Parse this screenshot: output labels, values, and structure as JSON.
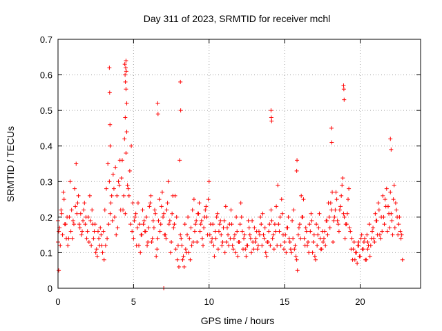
{
  "chart_data": {
    "type": "scatter",
    "title": "Day 311 of 2023, SRMTID for receiver mchl",
    "xlabel": "GPS time / hours",
    "ylabel": "SRMTID / TECUs",
    "xlim": [
      0,
      24
    ],
    "ylim": [
      0,
      0.7
    ],
    "x_ticks": [
      0,
      5,
      10,
      15,
      20
    ],
    "x_tick_labels": [
      "0",
      "5",
      "10",
      "15",
      "20"
    ],
    "y_ticks": [
      0,
      0.1,
      0.2,
      0.3,
      0.4,
      0.5,
      0.6,
      0.7
    ],
    "y_tick_labels": [
      "0",
      "0.1",
      "0.2",
      "0.3",
      "0.4",
      "0.5",
      "0.6",
      "0.7"
    ],
    "grid": true,
    "marker": "plus",
    "color": "#ff0000",
    "series": [
      {
        "name": "SRMTID",
        "x": [
          0.0,
          0.1,
          0.2,
          0.3,
          0.4,
          0.5,
          0.6,
          0.7,
          0.8,
          0.9,
          1.0,
          1.1,
          1.2,
          1.3,
          1.4,
          1.5,
          1.6,
          1.7,
          1.8,
          1.9,
          2.0,
          2.1,
          2.2,
          2.3,
          2.4,
          2.5,
          2.6,
          2.7,
          2.8,
          2.9,
          3.0,
          3.1,
          3.2,
          3.3,
          3.4,
          3.45,
          3.5,
          3.6,
          3.7,
          3.8,
          3.9,
          4.0,
          4.1,
          4.2,
          4.3,
          4.4,
          4.45,
          4.5,
          4.55,
          4.6,
          4.7,
          4.8,
          4.9,
          5.0,
          5.1,
          5.2,
          5.3,
          5.4,
          5.5,
          5.6,
          5.7,
          5.8,
          5.9,
          6.0,
          6.1,
          6.2,
          6.3,
          6.4,
          6.5,
          6.6,
          6.7,
          6.8,
          6.9,
          7.0,
          7.1,
          7.2,
          7.3,
          7.4,
          7.5,
          7.6,
          7.7,
          7.8,
          7.9,
          8.0,
          8.05,
          8.1,
          8.2,
          8.3,
          8.4,
          8.5,
          8.6,
          8.7,
          8.8,
          8.9,
          9.0,
          9.1,
          9.2,
          9.3,
          9.4,
          9.5,
          9.6,
          9.7,
          9.8,
          9.9,
          10.0,
          10.1,
          10.2,
          10.3,
          10.4,
          10.5,
          10.6,
          10.7,
          10.8,
          10.9,
          11.0,
          11.1,
          11.2,
          11.3,
          11.4,
          11.5,
          11.6,
          11.7,
          11.8,
          11.9,
          12.0,
          12.1,
          12.2,
          12.3,
          12.4,
          12.5,
          12.6,
          12.7,
          12.8,
          12.9,
          13.0,
          13.1,
          13.2,
          13.3,
          13.4,
          13.5,
          13.6,
          13.7,
          13.8,
          13.9,
          14.0,
          14.1,
          14.2,
          14.3,
          14.4,
          14.5,
          14.6,
          14.7,
          14.8,
          14.9,
          15.0,
          15.1,
          15.2,
          15.3,
          15.4,
          15.5,
          15.6,
          15.7,
          15.8,
          15.9,
          16.0,
          16.1,
          16.2,
          16.3,
          16.4,
          16.5,
          16.6,
          16.7,
          16.8,
          16.9,
          17.0,
          17.1,
          17.2,
          17.3,
          17.4,
          17.5,
          17.6,
          17.7,
          17.8,
          17.9,
          18.0,
          18.1,
          18.2,
          18.3,
          18.4,
          18.5,
          18.6,
          18.7,
          18.8,
          18.9,
          19.0,
          19.1,
          19.2,
          19.3,
          19.4,
          19.5,
          19.6,
          19.7,
          19.8,
          19.9,
          20.0,
          20.1,
          20.2,
          20.3,
          20.4,
          20.5,
          20.6,
          20.7,
          20.8,
          20.9,
          21.0,
          21.1,
          21.2,
          21.3,
          21.4,
          21.5,
          21.6,
          21.7,
          21.8,
          21.9,
          22.0,
          22.1,
          22.2,
          22.3,
          22.4,
          22.5,
          22.6,
          22.7,
          22.8,
          0.0,
          0.05,
          0.15,
          0.25,
          0.35,
          0.45,
          0.55,
          0.65,
          0.75,
          0.85,
          0.95,
          1.05,
          1.15,
          1.25,
          1.35,
          1.45,
          1.55,
          1.65,
          1.75,
          1.85,
          1.95,
          2.05,
          2.15,
          2.25,
          2.35,
          2.45,
          2.55,
          2.65,
          2.75,
          2.85,
          2.95,
          3.05,
          3.15,
          3.25,
          3.35,
          3.45,
          3.55,
          3.65,
          3.75,
          3.85,
          3.95,
          4.05,
          4.15,
          4.25,
          4.35,
          4.45,
          4.55,
          4.65,
          4.75,
          4.85,
          4.95,
          5.05,
          5.15,
          5.25,
          5.35,
          5.45,
          5.55,
          5.65,
          5.75,
          5.85,
          5.95,
          6.05,
          6.15,
          6.25,
          6.35,
          6.45,
          6.55,
          6.65,
          6.75,
          6.85,
          6.95,
          7.05,
          7.15,
          7.25,
          7.35,
          7.45,
          7.55,
          7.65,
          7.75,
          7.85,
          7.95,
          8.15,
          8.25,
          8.35,
          8.45,
          8.55,
          8.65,
          8.75,
          8.85,
          8.95,
          9.05,
          9.15,
          9.25,
          9.35,
          9.45,
          9.55,
          9.65,
          9.75,
          9.85,
          9.95,
          10.05,
          10.15,
          10.25,
          10.35,
          10.45,
          10.55,
          10.65,
          10.75,
          10.85,
          10.95,
          11.05,
          11.15,
          11.25,
          11.35,
          11.45,
          11.55,
          11.65,
          11.75,
          11.85,
          11.95,
          12.05,
          12.15,
          12.25,
          12.35,
          12.45,
          12.55,
          12.65,
          12.75,
          12.85,
          12.95,
          13.05,
          13.15,
          13.25,
          13.35,
          13.45,
          13.55,
          13.65,
          13.75,
          13.85,
          13.95,
          14.05,
          14.15,
          14.25,
          14.35,
          14.45,
          14.55,
          14.65,
          14.75,
          14.85,
          14.95,
          15.05,
          15.15,
          15.25,
          15.35,
          15.45,
          15.55,
          15.65,
          15.75,
          15.85,
          15.95,
          16.05,
          16.15,
          16.25,
          16.35,
          16.45,
          16.55,
          16.65,
          16.75,
          16.85,
          16.95,
          17.05,
          17.15,
          17.25,
          17.35,
          17.45,
          17.55,
          17.65,
          17.75,
          17.85,
          17.95,
          18.05,
          18.15,
          18.25,
          18.35,
          18.45,
          18.55,
          18.65,
          18.75,
          18.85,
          18.95,
          19.05,
          19.15,
          19.25,
          19.35,
          19.45,
          19.55,
          19.65,
          19.75,
          19.85,
          19.95,
          20.05,
          20.15,
          20.25,
          20.35,
          20.45,
          20.55,
          20.65,
          20.75,
          20.85,
          20.95,
          21.05,
          21.15,
          21.25,
          21.35,
          21.45,
          21.55,
          21.65,
          21.75,
          21.85,
          21.95,
          22.05,
          22.15,
          22.25,
          22.35,
          22.45,
          22.55,
          22.65,
          22.75,
          3.4,
          3.42,
          3.44,
          4.42,
          4.44,
          4.46,
          4.48,
          4.5,
          4.52,
          4.5,
          8.1,
          8.12,
          6.6,
          6.62,
          14.1,
          14.12,
          14.14,
          18.9,
          18.92,
          18.94,
          22.0,
          22.05,
          18.1,
          18.12,
          7.0,
          0.05,
          15.8,
          15.82,
          19.9,
          20.5
        ],
        "y": [
          0.19,
          0.17,
          0.22,
          0.15,
          0.25,
          0.18,
          0.2,
          0.14,
          0.3,
          0.22,
          0.19,
          0.28,
          0.35,
          0.24,
          0.18,
          0.21,
          0.16,
          0.22,
          0.18,
          0.14,
          0.2,
          0.26,
          0.12,
          0.18,
          0.16,
          0.1,
          0.09,
          0.14,
          0.17,
          0.12,
          0.16,
          0.22,
          0.28,
          0.35,
          0.3,
          0.4,
          0.24,
          0.19,
          0.28,
          0.34,
          0.26,
          0.3,
          0.36,
          0.31,
          0.22,
          0.42,
          0.48,
          0.38,
          0.52,
          0.29,
          0.26,
          0.18,
          0.16,
          0.14,
          0.2,
          0.12,
          0.24,
          0.18,
          0.15,
          0.22,
          0.19,
          0.16,
          0.12,
          0.17,
          0.24,
          0.13,
          0.19,
          0.22,
          0.09,
          0.14,
          0.25,
          0.18,
          0.27,
          0.21,
          0.15,
          0.22,
          0.3,
          0.19,
          0.13,
          0.26,
          0.18,
          0.11,
          0.08,
          0.06,
          0.36,
          0.15,
          0.12,
          0.09,
          0.18,
          0.1,
          0.2,
          0.14,
          0.17,
          0.22,
          0.25,
          0.18,
          0.13,
          0.21,
          0.16,
          0.19,
          0.12,
          0.2,
          0.23,
          0.15,
          0.3,
          0.18,
          0.14,
          0.12,
          0.16,
          0.2,
          0.11,
          0.18,
          0.15,
          0.13,
          0.19,
          0.23,
          0.17,
          0.12,
          0.14,
          0.18,
          0.11,
          0.15,
          0.2,
          0.09,
          0.13,
          0.24,
          0.16,
          0.14,
          0.11,
          0.12,
          0.19,
          0.15,
          0.1,
          0.13,
          0.17,
          0.14,
          0.11,
          0.16,
          0.2,
          0.12,
          0.15,
          0.17,
          0.09,
          0.13,
          0.18,
          0.22,
          0.14,
          0.11,
          0.16,
          0.12,
          0.18,
          0.2,
          0.25,
          0.15,
          0.13,
          0.1,
          0.17,
          0.14,
          0.11,
          0.19,
          0.22,
          0.12,
          0.08,
          0.15,
          0.18,
          0.26,
          0.2,
          0.14,
          0.17,
          0.12,
          0.1,
          0.16,
          0.19,
          0.13,
          0.09,
          0.18,
          0.15,
          0.21,
          0.11,
          0.16,
          0.14,
          0.12,
          0.19,
          0.24,
          0.17,
          0.22,
          0.13,
          0.2,
          0.27,
          0.19,
          0.16,
          0.23,
          0.29,
          0.21,
          0.14,
          0.18,
          0.25,
          0.17,
          0.11,
          0.08,
          0.13,
          0.1,
          0.07,
          0.12,
          0.09,
          0.15,
          0.11,
          0.14,
          0.08,
          0.13,
          0.18,
          0.12,
          0.16,
          0.14,
          0.21,
          0.19,
          0.24,
          0.15,
          0.2,
          0.26,
          0.18,
          0.23,
          0.16,
          0.21,
          0.27,
          0.19,
          0.25,
          0.17,
          0.22,
          0.15,
          0.2,
          0.14,
          0.08,
          0.13,
          0.16,
          0.12,
          0.21,
          0.27,
          0.18,
          0.14,
          0.12,
          0.2,
          0.16,
          0.14,
          0.18,
          0.23,
          0.21,
          0.26,
          0.17,
          0.15,
          0.19,
          0.24,
          0.2,
          0.16,
          0.13,
          0.19,
          0.22,
          0.14,
          0.18,
          0.11,
          0.16,
          0.12,
          0.15,
          0.1,
          0.08,
          0.12,
          0.14,
          0.18,
          0.21,
          0.26,
          0.32,
          0.2,
          0.15,
          0.17,
          0.29,
          0.22,
          0.36,
          0.26,
          0.21,
          0.44,
          0.28,
          0.33,
          0.4,
          0.24,
          0.19,
          0.21,
          0.17,
          0.12,
          0.1,
          0.15,
          0.18,
          0.16,
          0.2,
          0.13,
          0.23,
          0.26,
          0.14,
          0.17,
          0.21,
          0.11,
          0.19,
          0.16,
          0.23,
          0.2,
          0.15,
          0.14,
          0.24,
          0.18,
          0.1,
          0.21,
          0.17,
          0.26,
          0.2,
          0.12,
          0.14,
          0.08,
          0.06,
          0.11,
          0.15,
          0.1,
          0.08,
          0.12,
          0.13,
          0.16,
          0.19,
          0.21,
          0.24,
          0.18,
          0.14,
          0.17,
          0.22,
          0.2,
          0.25,
          0.15,
          0.13,
          0.18,
          0.09,
          0.14,
          0.21,
          0.16,
          0.19,
          0.12,
          0.17,
          0.1,
          0.13,
          0.15,
          0.18,
          0.22,
          0.12,
          0.14,
          0.1,
          0.16,
          0.13,
          0.18,
          0.2,
          0.11,
          0.15,
          0.09,
          0.12,
          0.17,
          0.14,
          0.19,
          0.11,
          0.13,
          0.16,
          0.12,
          0.15,
          0.18,
          0.21,
          0.14,
          0.1,
          0.13,
          0.16,
          0.12,
          0.19,
          0.15,
          0.18,
          0.23,
          0.29,
          0.16,
          0.12,
          0.21,
          0.11,
          0.15,
          0.17,
          0.2,
          0.13,
          0.1,
          0.14,
          0.11,
          0.09,
          0.05,
          0.17,
          0.14,
          0.2,
          0.25,
          0.12,
          0.16,
          0.13,
          0.18,
          0.21,
          0.1,
          0.15,
          0.08,
          0.12,
          0.17,
          0.14,
          0.11,
          0.13,
          0.16,
          0.19,
          0.15,
          0.2,
          0.24,
          0.27,
          0.19,
          0.22,
          0.25,
          0.18,
          0.22,
          0.26,
          0.31,
          0.2,
          0.18,
          0.21,
          0.28,
          0.16,
          0.14,
          0.11,
          0.08,
          0.1,
          0.12,
          0.09,
          0.14,
          0.11,
          0.13,
          0.08,
          0.15,
          0.12,
          0.09,
          0.14,
          0.17,
          0.13,
          0.19,
          0.15,
          0.22,
          0.14,
          0.16,
          0.2,
          0.25,
          0.28,
          0.23,
          0.17,
          0.21,
          0.15,
          0.29,
          0.24,
          0.2,
          0.18,
          0.16,
          0.15,
          0.62,
          0.55,
          0.46,
          0.63,
          0.6,
          0.58,
          0.62,
          0.64,
          0.61,
          0.56,
          0.58,
          0.5,
          0.52,
          0.49,
          0.5,
          0.48,
          0.47,
          0.57,
          0.56,
          0.53,
          0.42,
          0.39,
          0.45,
          0.41,
          0.0,
          0.05,
          0.33,
          0.36,
          0.13,
          0.11
        ],
        "marks": "Each (x, y) pair is one '+' marker: GPS time (hours) vs SRMTID (TECUs)."
      }
    ]
  }
}
